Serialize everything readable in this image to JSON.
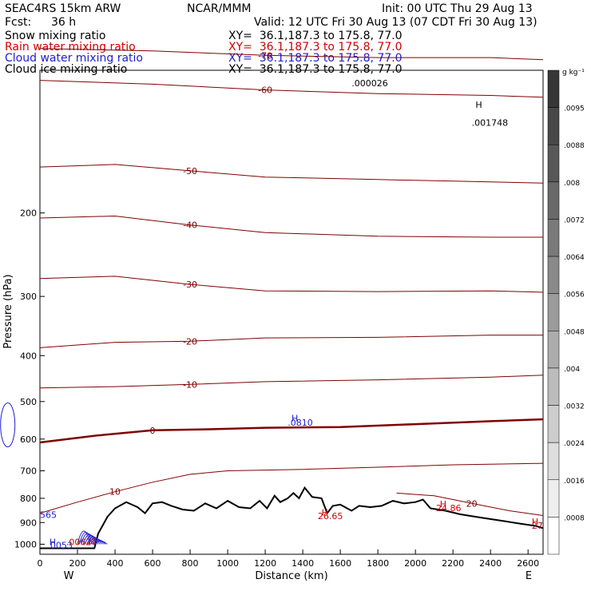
{
  "header": {
    "model": "SEAC4RS 15km ARW",
    "org": "NCAR/MMM",
    "init": "Init: 00 UTC Thu 29 Aug 13",
    "fcst_label": "Fcst:",
    "fcst_value": "36 h",
    "valid": "Valid: 12 UTC Fri 30 Aug 13 (07 CDT Fri 30 Aug 13)"
  },
  "fields": [
    {
      "name": "Snow mixing ratio",
      "xy": "XY=  36.1,187.3 to 175.8, 77.0",
      "color": "#000000"
    },
    {
      "name": "Rain water mixing ratio",
      "xy": "XY=  36.1,187.3 to 175.8, 77.0",
      "color": "#d00000"
    },
    {
      "name": "Cloud water mixing ratio",
      "xy": "XY=  36.1,187.3 to 175.8, 77.0",
      "color": "#2020d0"
    },
    {
      "name": "Cloud ice mixing ratio",
      "xy": "XY=  36.1,187.3 to 175.8, 77.0",
      "color": "#000000"
    }
  ],
  "colorbar": {
    "unit": "g kg⁻¹",
    "labels": [
      ".0095",
      ".0088",
      ".008",
      ".0072",
      ".0064",
      ".0056",
      ".0048",
      ".004",
      ".0032",
      ".0024",
      ".0016",
      ".0008"
    ]
  },
  "chart_data": {
    "type": "cross-section contour",
    "xlabel": "Distance (km)",
    "ylabel": "Pressure (hPa)",
    "x_ticks": [
      0,
      200,
      400,
      600,
      800,
      1000,
      1200,
      1400,
      1600,
      1800,
      2000,
      2200,
      2400,
      2600
    ],
    "y_ticks": [
      200,
      300,
      400,
      500,
      600,
      700,
      800,
      900,
      1000
    ],
    "x_range": [
      0,
      2680
    ],
    "y_range": [
      100,
      1050
    ],
    "y_scale": "log",
    "direction_left": "W",
    "direction_right": "E",
    "contour_color": "#800000",
    "temperature_contours": [
      {
        "label": "-70",
        "points": [
          [
            0,
            90
          ],
          [
            600,
            91
          ],
          [
            1200,
            93
          ],
          [
            1800,
            94
          ],
          [
            2400,
            94
          ],
          [
            2680,
            95
          ]
        ]
      },
      {
        "label": "-60",
        "points": [
          [
            0,
            105
          ],
          [
            600,
            107
          ],
          [
            1200,
            110
          ],
          [
            1800,
            112
          ],
          [
            2400,
            113
          ],
          [
            2680,
            114
          ]
        ]
      },
      {
        "label": "-50",
        "points": [
          [
            0,
            160
          ],
          [
            400,
            158
          ],
          [
            800,
            163
          ],
          [
            1200,
            168
          ],
          [
            1800,
            170
          ],
          [
            2400,
            172
          ],
          [
            2680,
            173
          ]
        ]
      },
      {
        "label": "-40",
        "points": [
          [
            0,
            205
          ],
          [
            400,
            203
          ],
          [
            800,
            212
          ],
          [
            1200,
            220
          ],
          [
            1800,
            224
          ],
          [
            2400,
            225
          ],
          [
            2680,
            225
          ]
        ]
      },
      {
        "label": "-30",
        "points": [
          [
            0,
            275
          ],
          [
            400,
            272
          ],
          [
            800,
            283
          ],
          [
            1200,
            292
          ],
          [
            1800,
            293
          ],
          [
            2400,
            292
          ],
          [
            2680,
            294
          ]
        ]
      },
      {
        "label": "-20",
        "points": [
          [
            0,
            385
          ],
          [
            400,
            375
          ],
          [
            800,
            373
          ],
          [
            1200,
            367
          ],
          [
            1800,
            366
          ],
          [
            2400,
            362
          ],
          [
            2680,
            362
          ]
        ]
      },
      {
        "label": "-10",
        "points": [
          [
            0,
            468
          ],
          [
            400,
            465
          ],
          [
            800,
            460
          ],
          [
            1200,
            454
          ],
          [
            1800,
            450
          ],
          [
            2400,
            444
          ],
          [
            2680,
            440
          ]
        ]
      },
      {
        "label": "0",
        "points": [
          [
            0,
            610
          ],
          [
            300,
            590
          ],
          [
            600,
            575
          ],
          [
            900,
            572
          ],
          [
            1200,
            568
          ],
          [
            1600,
            566
          ],
          [
            2000,
            558
          ],
          [
            2400,
            550
          ],
          [
            2680,
            545
          ]
        ]
      },
      {
        "label": "10",
        "points": [
          [
            0,
            860
          ],
          [
            200,
            815
          ],
          [
            400,
            775
          ],
          [
            600,
            740
          ],
          [
            800,
            712
          ],
          [
            1000,
            700
          ],
          [
            1400,
            695
          ],
          [
            1800,
            688
          ],
          [
            2200,
            680
          ],
          [
            2680,
            675
          ]
        ]
      },
      {
        "label": "20",
        "points": [
          [
            1900,
            780
          ],
          [
            2100,
            790
          ],
          [
            2300,
            820
          ],
          [
            2500,
            850
          ],
          [
            2680,
            870
          ]
        ]
      }
    ],
    "terrain": [
      [
        0,
        1020
      ],
      [
        290,
        1020
      ],
      [
        310,
        950
      ],
      [
        360,
        875
      ],
      [
        400,
        840
      ],
      [
        460,
        815
      ],
      [
        520,
        835
      ],
      [
        560,
        860
      ],
      [
        600,
        820
      ],
      [
        650,
        815
      ],
      [
        700,
        830
      ],
      [
        760,
        845
      ],
      [
        820,
        850
      ],
      [
        880,
        820
      ],
      [
        940,
        840
      ],
      [
        1000,
        810
      ],
      [
        1060,
        835
      ],
      [
        1120,
        840
      ],
      [
        1170,
        810
      ],
      [
        1210,
        840
      ],
      [
        1250,
        790
      ],
      [
        1280,
        815
      ],
      [
        1320,
        800
      ],
      [
        1350,
        780
      ],
      [
        1380,
        800
      ],
      [
        1410,
        760
      ],
      [
        1450,
        795
      ],
      [
        1500,
        800
      ],
      [
        1530,
        860
      ],
      [
        1560,
        830
      ],
      [
        1600,
        825
      ],
      [
        1660,
        850
      ],
      [
        1700,
        830
      ],
      [
        1760,
        835
      ],
      [
        1820,
        830
      ],
      [
        1880,
        810
      ],
      [
        1940,
        820
      ],
      [
        2000,
        815
      ],
      [
        2040,
        805
      ],
      [
        2080,
        840
      ],
      [
        2160,
        850
      ],
      [
        2240,
        865
      ],
      [
        2360,
        880
      ],
      [
        2480,
        895
      ],
      [
        2560,
        905
      ],
      [
        2640,
        915
      ],
      [
        2680,
        925
      ]
    ],
    "annotations": [
      {
        "text": ".000026",
        "x": 1660,
        "y": 108,
        "color": "#000000"
      },
      {
        "text": "H",
        "x": 2320,
        "y": 120,
        "color": "#000000"
      },
      {
        "text": ".001748",
        "x": 2300,
        "y": 131,
        "color": "#000000"
      },
      {
        "text": "H",
        "x": 1340,
        "y": 550,
        "color": "#2020d0"
      },
      {
        "text": ".0810",
        "x": 1320,
        "y": 562,
        "color": "#2020d0"
      },
      {
        "text": "H",
        "x": 1500,
        "y": 870,
        "color": "#d00000"
      },
      {
        "text": "26.65",
        "x": 1480,
        "y": 885,
        "color": "#d00000"
      },
      {
        "text": "H",
        "x": 2130,
        "y": 835,
        "color": "#d00000"
      },
      {
        "text": "24.86",
        "x": 2110,
        "y": 852,
        "color": "#d00000"
      },
      {
        "text": "H",
        "x": 2620,
        "y": 910,
        "color": "#d00000"
      },
      {
        "text": "27",
        "x": 2620,
        "y": 927,
        "color": "#d00000"
      },
      {
        "text": "565",
        "x": 0,
        "y": 880,
        "color": "#2020d0"
      },
      {
        "text": "H",
        "x": 50,
        "y": 1005,
        "color": "#2020d0"
      },
      {
        "text": ".0053",
        "x": 40,
        "y": 1020,
        "color": "#2020d0"
      },
      {
        "text": ".00627",
        "x": 140,
        "y": 1005,
        "color": "#d00000"
      }
    ]
  }
}
